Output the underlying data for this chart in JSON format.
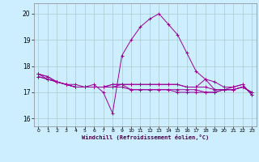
{
  "xlabel": "Windchill (Refroidissement éolien,°C)",
  "background_color": "#cceeff",
  "grid_color": "#aacccc",
  "line_color": "#990099",
  "ylim": [
    15.7,
    20.4
  ],
  "xlim": [
    -0.5,
    23.5
  ],
  "yticks": [
    16,
    17,
    18,
    19,
    20
  ],
  "xticks": [
    0,
    1,
    2,
    3,
    4,
    5,
    6,
    7,
    8,
    9,
    10,
    11,
    12,
    13,
    14,
    15,
    16,
    17,
    18,
    19,
    20,
    21,
    22,
    23
  ],
  "series": [
    [
      17.7,
      17.6,
      17.4,
      17.3,
      17.2,
      17.2,
      17.3,
      17.0,
      16.2,
      18.4,
      19.0,
      19.5,
      19.8,
      20.0,
      19.6,
      19.2,
      18.5,
      17.8,
      17.5,
      17.1,
      17.1,
      17.2,
      17.3,
      16.9
    ],
    [
      17.7,
      17.5,
      17.4,
      17.3,
      17.2,
      17.2,
      17.2,
      17.2,
      17.2,
      17.2,
      17.1,
      17.1,
      17.1,
      17.1,
      17.1,
      17.1,
      17.1,
      17.1,
      17.0,
      17.0,
      17.1,
      17.1,
      17.2,
      17.0
    ],
    [
      17.6,
      17.5,
      17.4,
      17.3,
      17.2,
      17.2,
      17.2,
      17.2,
      17.3,
      17.3,
      17.3,
      17.3,
      17.3,
      17.3,
      17.3,
      17.3,
      17.2,
      17.2,
      17.2,
      17.1,
      17.1,
      17.1,
      17.2,
      17.0
    ],
    [
      17.6,
      17.5,
      17.4,
      17.3,
      17.3,
      17.2,
      17.2,
      17.2,
      17.3,
      17.3,
      17.3,
      17.3,
      17.3,
      17.3,
      17.3,
      17.3,
      17.2,
      17.2,
      17.5,
      17.4,
      17.2,
      17.2,
      17.3,
      16.9
    ],
    [
      17.7,
      17.6,
      17.4,
      17.3,
      17.2,
      17.2,
      17.2,
      17.2,
      17.2,
      17.3,
      17.1,
      17.1,
      17.1,
      17.1,
      17.1,
      17.0,
      17.0,
      17.0,
      17.0,
      17.0,
      17.1,
      17.1,
      17.2,
      17.0
    ]
  ]
}
